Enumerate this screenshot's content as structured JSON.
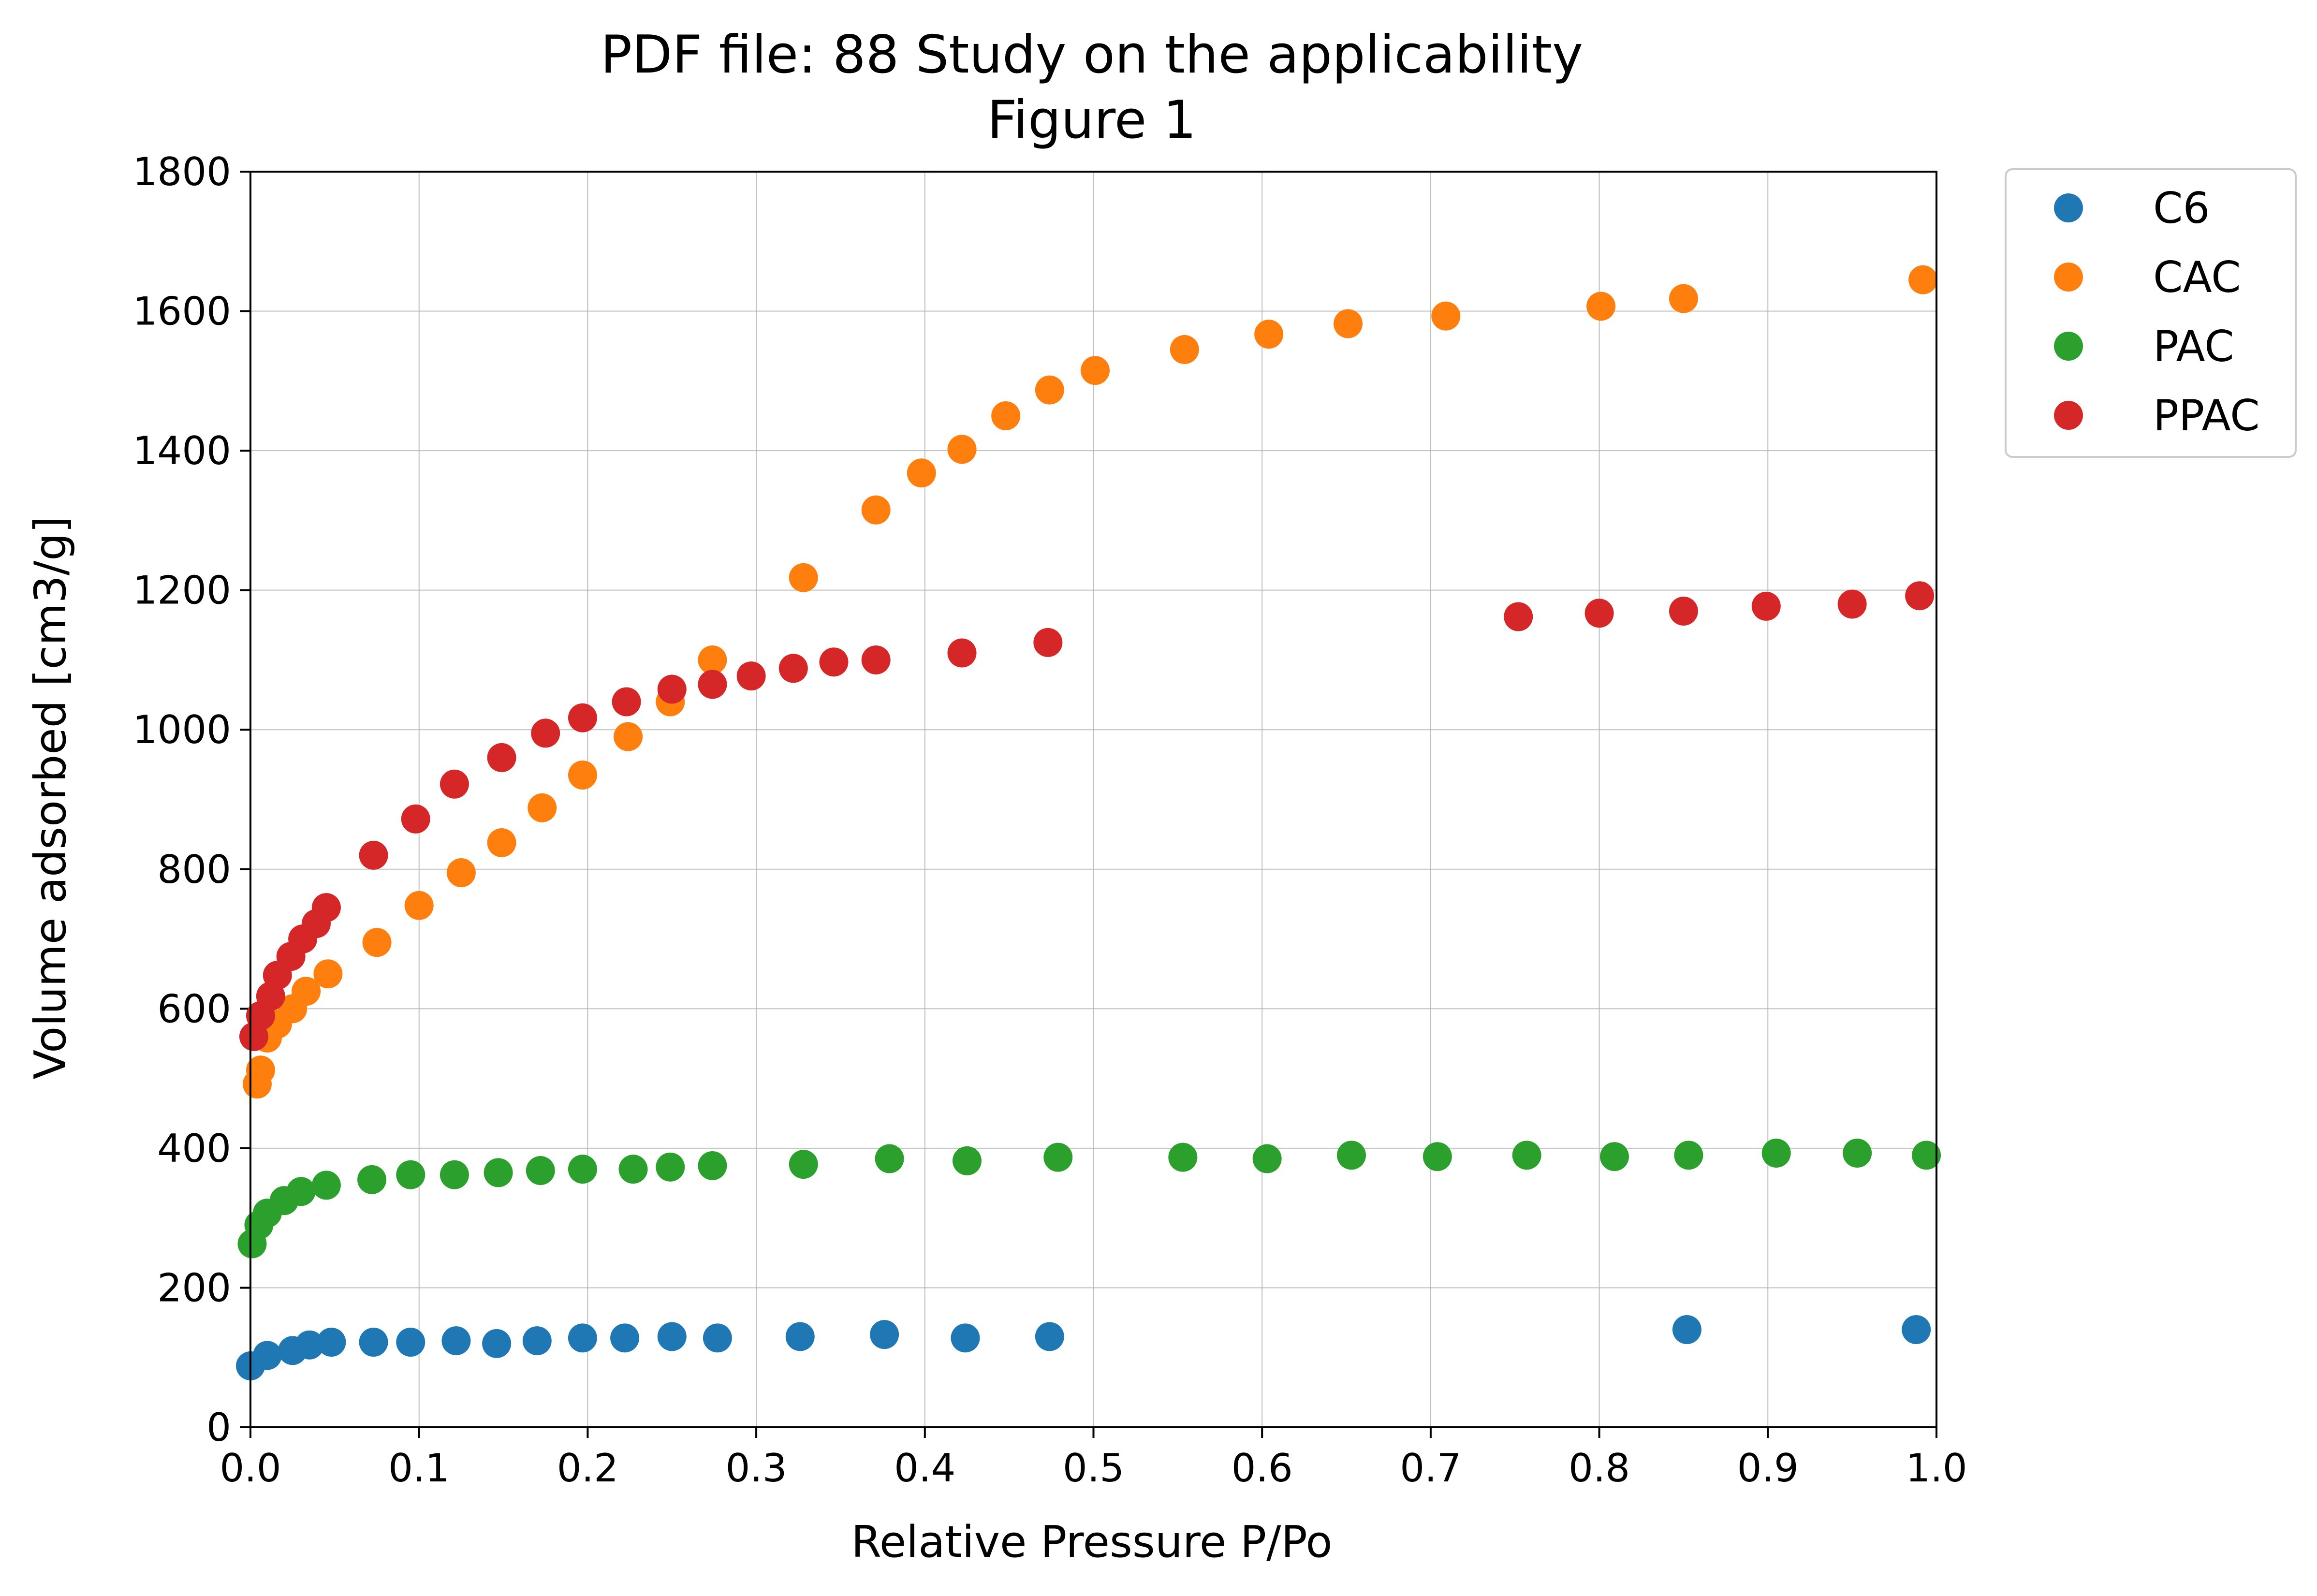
{
  "chart_data": {
    "type": "scatter",
    "title": "PDF file: 88 Study on the applicability",
    "subtitle": "Figure 1",
    "xlabel": "Relative Pressure P/Po",
    "ylabel": "Volume adsorbed [cm3/g]",
    "xlim": [
      0.0,
      1.0
    ],
    "ylim": [
      0,
      1800
    ],
    "x_ticks": [
      "0.0",
      "0.1",
      "0.2",
      "0.3",
      "0.4",
      "0.5",
      "0.6",
      "0.7",
      "0.8",
      "0.9",
      "1.0"
    ],
    "y_ticks": [
      "0",
      "200",
      "400",
      "600",
      "800",
      "1000",
      "1200",
      "1400",
      "1600",
      "1800"
    ],
    "grid": true,
    "legend": "outside-top-right",
    "series": [
      {
        "name": "C6",
        "color": "#1f77b4",
        "points": [
          [
            0.0,
            88
          ],
          [
            0.01,
            103
          ],
          [
            0.025,
            110
          ],
          [
            0.035,
            118
          ],
          [
            0.048,
            122
          ],
          [
            0.073,
            122
          ],
          [
            0.095,
            122
          ],
          [
            0.122,
            124
          ],
          [
            0.146,
            120
          ],
          [
            0.17,
            124
          ],
          [
            0.197,
            128
          ],
          [
            0.222,
            128
          ],
          [
            0.25,
            130
          ],
          [
            0.277,
            128
          ],
          [
            0.326,
            130
          ],
          [
            0.376,
            133
          ],
          [
            0.424,
            128
          ],
          [
            0.474,
            130
          ],
          [
            0.852,
            140
          ],
          [
            0.988,
            140
          ]
        ]
      },
      {
        "name": "CAC",
        "color": "#ff7f0e",
        "points": [
          [
            0.004,
            492
          ],
          [
            0.006,
            512
          ],
          [
            0.01,
            558
          ],
          [
            0.016,
            578
          ],
          [
            0.025,
            600
          ],
          [
            0.033,
            625
          ],
          [
            0.046,
            650
          ],
          [
            0.075,
            695
          ],
          [
            0.1,
            748
          ],
          [
            0.125,
            795
          ],
          [
            0.149,
            838
          ],
          [
            0.173,
            888
          ],
          [
            0.197,
            935
          ],
          [
            0.224,
            990
          ],
          [
            0.249,
            1040
          ],
          [
            0.274,
            1100
          ],
          [
            0.328,
            1218
          ],
          [
            0.371,
            1315
          ],
          [
            0.398,
            1368
          ],
          [
            0.422,
            1402
          ],
          [
            0.448,
            1450
          ],
          [
            0.474,
            1487
          ],
          [
            0.501,
            1515
          ],
          [
            0.554,
            1545
          ],
          [
            0.604,
            1567
          ],
          [
            0.651,
            1582
          ],
          [
            0.709,
            1593
          ],
          [
            0.801,
            1607
          ],
          [
            0.85,
            1618
          ],
          [
            0.992,
            1645
          ]
        ]
      },
      {
        "name": "PAC",
        "color": "#2ca02c",
        "points": [
          [
            0.001,
            263
          ],
          [
            0.005,
            290
          ],
          [
            0.01,
            307
          ],
          [
            0.02,
            325
          ],
          [
            0.03,
            338
          ],
          [
            0.045,
            347
          ],
          [
            0.072,
            355
          ],
          [
            0.095,
            362
          ],
          [
            0.121,
            362
          ],
          [
            0.147,
            365
          ],
          [
            0.172,
            368
          ],
          [
            0.197,
            370
          ],
          [
            0.227,
            370
          ],
          [
            0.249,
            373
          ],
          [
            0.274,
            375
          ],
          [
            0.328,
            377
          ],
          [
            0.379,
            385
          ],
          [
            0.425,
            382
          ],
          [
            0.479,
            387
          ],
          [
            0.553,
            387
          ],
          [
            0.603,
            385
          ],
          [
            0.653,
            390
          ],
          [
            0.704,
            388
          ],
          [
            0.757,
            390
          ],
          [
            0.809,
            388
          ],
          [
            0.853,
            390
          ],
          [
            0.905,
            393
          ],
          [
            0.953,
            393
          ],
          [
            0.994,
            390
          ]
        ]
      },
      {
        "name": "PPAC",
        "color": "#d62728",
        "points": [
          [
            0.002,
            560
          ],
          [
            0.006,
            590
          ],
          [
            0.012,
            618
          ],
          [
            0.016,
            648
          ],
          [
            0.024,
            675
          ],
          [
            0.031,
            700
          ],
          [
            0.039,
            722
          ],
          [
            0.045,
            745
          ],
          [
            0.073,
            820
          ],
          [
            0.098,
            872
          ],
          [
            0.121,
            922
          ],
          [
            0.149,
            960
          ],
          [
            0.175,
            995
          ],
          [
            0.197,
            1017
          ],
          [
            0.223,
            1040
          ],
          [
            0.25,
            1058
          ],
          [
            0.274,
            1065
          ],
          [
            0.297,
            1077
          ],
          [
            0.322,
            1088
          ],
          [
            0.346,
            1097
          ],
          [
            0.371,
            1100
          ],
          [
            0.422,
            1110
          ],
          [
            0.473,
            1125
          ],
          [
            0.752,
            1162
          ],
          [
            0.8,
            1167
          ],
          [
            0.85,
            1170
          ],
          [
            0.899,
            1177
          ],
          [
            0.95,
            1180
          ],
          [
            0.99,
            1192
          ]
        ]
      }
    ]
  }
}
